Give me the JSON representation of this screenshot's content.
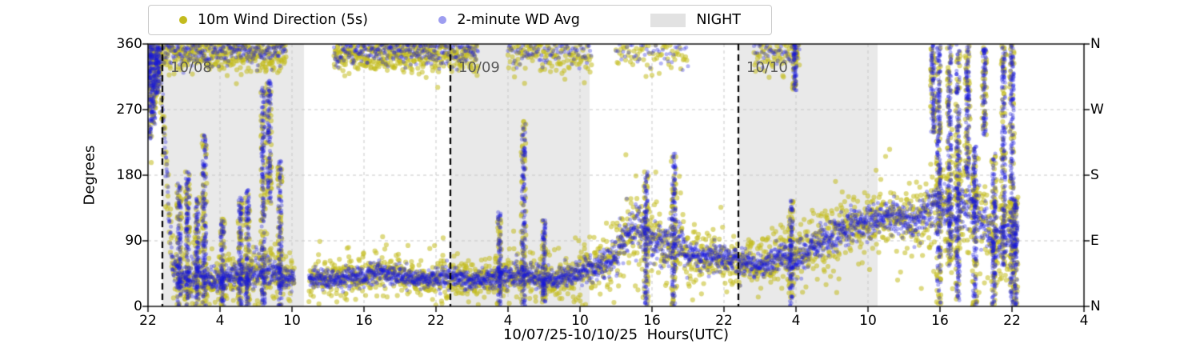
{
  "legend": {
    "items": [
      {
        "label": "10m Wind Direction (5s)",
        "marker": "dot",
        "swatch_color": "#c3bb1e"
      },
      {
        "label": "2-minute WD Avg",
        "marker": "dot",
        "swatch_color": "#9d9df0"
      },
      {
        "label": "NIGHT",
        "marker": "patch",
        "swatch_color": "#e2e2e2"
      }
    ]
  },
  "axes": {
    "ylabel": "Degrees",
    "xlabel": "10/07/25-10/10/25  Hours(UTC)"
  },
  "chart_data": {
    "type": "scatter",
    "title": "",
    "xlabel": "10/07/25-10/10/25  Hours(UTC)",
    "ylabel": "Degrees",
    "xlim_hours": [
      0,
      78
    ],
    "ylim": [
      0,
      360
    ],
    "x_tick_hours": [
      0,
      6,
      12,
      18,
      24,
      30,
      36,
      42,
      48,
      54,
      60,
      66,
      72,
      78
    ],
    "x_tick_labels": [
      "22",
      "4",
      "10",
      "16",
      "22",
      "4",
      "10",
      "16",
      "22",
      "4",
      "10",
      "16",
      "22",
      "4"
    ],
    "y_tick_values": [
      0,
      90,
      180,
      270,
      360
    ],
    "y_tick_labels": [
      "0",
      "90",
      "180",
      "270",
      "360"
    ],
    "right_axis_labels": [
      "N",
      "E",
      "S",
      "W",
      "N"
    ],
    "grid": true,
    "legend_position": "top",
    "series": [
      {
        "name": "10m Wind Direction (5s)",
        "color": "#c3bb1e",
        "marker": "dot",
        "sampling": "5s"
      },
      {
        "name": "2-minute WD Avg",
        "color": "#1616dc",
        "marker": "dot",
        "sampling": "2min"
      }
    ],
    "night_regions_hours": [
      [
        1.2,
        13.0
      ],
      [
        25.2,
        36.8
      ],
      [
        49.2,
        60.8
      ]
    ],
    "day_boundaries": [
      {
        "t": 1.2,
        "label": "10/08"
      },
      {
        "t": 25.2,
        "label": "10/09"
      },
      {
        "t": 49.2,
        "label": "10/10"
      }
    ],
    "data_gaps_hours": [
      [
        12.2,
        13.4
      ],
      [
        72.6,
        78.1
      ]
    ],
    "baseline_keyframes": [
      [
        0,
        300,
        62
      ],
      [
        1,
        330,
        50
      ],
      [
        2,
        60,
        45
      ],
      [
        3,
        35,
        28
      ],
      [
        4,
        45,
        38
      ],
      [
        5,
        38,
        30
      ],
      [
        6,
        32,
        26
      ],
      [
        7,
        42,
        32
      ],
      [
        8,
        38,
        32
      ],
      [
        9,
        48,
        42
      ],
      [
        10,
        52,
        46
      ],
      [
        11,
        42,
        34
      ],
      [
        12.2,
        38,
        26
      ],
      [
        13.4,
        40,
        26
      ],
      [
        15,
        36,
        24
      ],
      [
        17,
        40,
        28
      ],
      [
        19,
        46,
        30
      ],
      [
        21,
        42,
        28
      ],
      [
        23,
        36,
        24
      ],
      [
        25,
        42,
        28
      ],
      [
        27,
        36,
        24
      ],
      [
        29,
        40,
        30
      ],
      [
        31,
        46,
        34
      ],
      [
        33,
        36,
        26
      ],
      [
        35,
        40,
        28
      ],
      [
        36.5,
        52,
        34
      ],
      [
        38,
        58,
        38
      ],
      [
        39,
        72,
        50
      ],
      [
        40,
        100,
        58
      ],
      [
        41,
        112,
        58
      ],
      [
        42,
        92,
        54
      ],
      [
        43,
        82,
        50
      ],
      [
        44,
        92,
        58
      ],
      [
        45,
        72,
        42
      ],
      [
        46,
        66,
        36
      ],
      [
        47,
        70,
        36
      ],
      [
        48,
        66,
        34
      ],
      [
        49,
        62,
        34
      ],
      [
        50,
        60,
        34
      ],
      [
        51,
        56,
        30
      ],
      [
        52,
        62,
        36
      ],
      [
        53,
        70,
        44
      ],
      [
        54,
        62,
        40
      ],
      [
        55,
        76,
        40
      ],
      [
        56,
        86,
        44
      ],
      [
        57,
        96,
        44
      ],
      [
        58,
        106,
        44
      ],
      [
        59,
        112,
        44
      ],
      [
        60,
        116,
        44
      ],
      [
        61,
        122,
        44
      ],
      [
        62,
        126,
        44
      ],
      [
        63,
        120,
        44
      ],
      [
        64,
        116,
        50
      ],
      [
        65,
        132,
        56
      ],
      [
        66,
        142,
        60
      ],
      [
        67,
        122,
        66
      ],
      [
        68,
        140,
        68
      ],
      [
        69,
        130,
        68
      ],
      [
        70,
        102,
        68
      ],
      [
        71,
        92,
        68
      ],
      [
        72,
        100,
        76
      ],
      [
        72.5,
        92,
        60
      ]
    ],
    "top_band_intervals": [
      [
        0,
        11.5,
        0.9
      ],
      [
        15.5,
        24,
        1.0
      ],
      [
        24,
        27.5,
        0.85
      ],
      [
        30,
        37,
        0.5
      ],
      [
        39,
        45,
        0.3
      ],
      [
        50.5,
        54.3,
        0.5
      ]
    ],
    "streak_events": [
      [
        0.15,
        230,
        360
      ],
      [
        0.45,
        250,
        360
      ],
      [
        0.8,
        290,
        360
      ],
      [
        2.6,
        0,
        170
      ],
      [
        3.3,
        0,
        185
      ],
      [
        4.1,
        0,
        150
      ],
      [
        4.7,
        0,
        235
      ],
      [
        6.2,
        0,
        120
      ],
      [
        7.7,
        0,
        150
      ],
      [
        8.3,
        0,
        160
      ],
      [
        9.6,
        0,
        300
      ],
      [
        10.1,
        140,
        310
      ],
      [
        11.0,
        0,
        200
      ],
      [
        29.3,
        0,
        130
      ],
      [
        31.3,
        0,
        255
      ],
      [
        33.0,
        0,
        120
      ],
      [
        41.5,
        0,
        185
      ],
      [
        43.8,
        0,
        210
      ],
      [
        53.6,
        0,
        150
      ],
      [
        53.9,
        295,
        360
      ],
      [
        65.4,
        235,
        360
      ],
      [
        65.9,
        0,
        360
      ],
      [
        66.8,
        55,
        360
      ],
      [
        67.5,
        0,
        360
      ],
      [
        68.3,
        175,
        360
      ],
      [
        68.9,
        0,
        220
      ],
      [
        69.7,
        235,
        355
      ],
      [
        70.5,
        0,
        210
      ],
      [
        71.3,
        55,
        360
      ],
      [
        72.0,
        0,
        360
      ],
      [
        72.3,
        0,
        150
      ]
    ],
    "seed": 42
  }
}
